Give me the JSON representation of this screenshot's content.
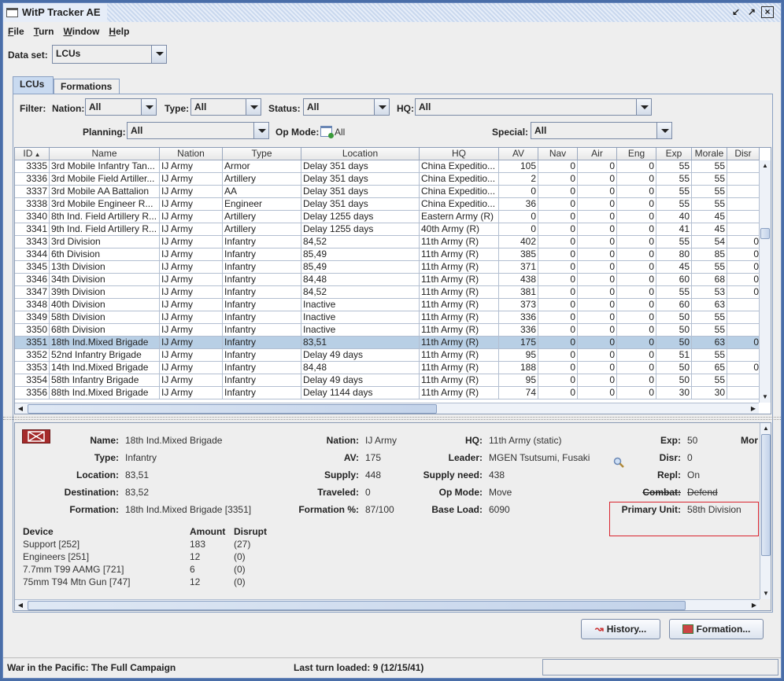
{
  "window": {
    "title": "WitP Tracker AE"
  },
  "menu": [
    {
      "key": "F",
      "rest": "ile"
    },
    {
      "key": "T",
      "rest": "urn"
    },
    {
      "key": "W",
      "rest": "indow"
    },
    {
      "key": "H",
      "rest": "elp"
    }
  ],
  "dataset": {
    "label": "Data set:",
    "value": "LCUs"
  },
  "tabs": [
    {
      "label": "LCUs",
      "active": true
    },
    {
      "label": "Formations",
      "active": false
    }
  ],
  "filters": {
    "filter_label": "Filter:",
    "nation_label": "Nation:",
    "nation": "All",
    "type_label": "Type:",
    "type": "All",
    "status_label": "Status:",
    "status": "All",
    "hq_label": "HQ:",
    "hq": "All",
    "planning_label": "Planning:",
    "planning": "All",
    "opmode_label": "Op Mode:",
    "opmode": "All",
    "special_label": "Special:",
    "special": "All"
  },
  "table": {
    "columns": [
      "ID",
      "Name",
      "Nation",
      "Type",
      "Location",
      "HQ",
      "AV",
      "Nav",
      "Air",
      "Eng",
      "Exp",
      "Morale",
      "Disr"
    ],
    "sort_column": "ID",
    "sort_dir": "ascending",
    "selected_id": "3351",
    "rows": [
      [
        "3335",
        "3rd Mobile Infantry Tan...",
        "IJ Army",
        "Armor",
        "Delay 351 days",
        "China Expeditio...",
        "105",
        "0",
        "0",
        "0",
        "55",
        "55",
        ""
      ],
      [
        "3336",
        "3rd Mobile Field Artiller...",
        "IJ Army",
        "Artillery",
        "Delay 351 days",
        "China Expeditio...",
        "2",
        "0",
        "0",
        "0",
        "55",
        "55",
        ""
      ],
      [
        "3337",
        "3rd Mobile AA Battalion",
        "IJ Army",
        "AA",
        "Delay 351 days",
        "China Expeditio...",
        "0",
        "0",
        "0",
        "0",
        "55",
        "55",
        ""
      ],
      [
        "3338",
        "3rd Mobile Engineer R...",
        "IJ Army",
        "Engineer",
        "Delay 351 days",
        "China Expeditio...",
        "36",
        "0",
        "0",
        "0",
        "55",
        "55",
        ""
      ],
      [
        "3340",
        "8th Ind. Field Artillery R...",
        "IJ Army",
        "Artillery",
        "Delay 1255 days",
        "Eastern Army (R)",
        "0",
        "0",
        "0",
        "0",
        "40",
        "45",
        ""
      ],
      [
        "3341",
        "9th Ind. Field Artillery R...",
        "IJ Army",
        "Artillery",
        "Delay 1255 days",
        "40th Army (R)",
        "0",
        "0",
        "0",
        "0",
        "41",
        "45",
        ""
      ],
      [
        "3343",
        "3rd Division",
        "IJ Army",
        "Infantry",
        "84,52",
        "11th Army (R)",
        "402",
        "0",
        "0",
        "0",
        "55",
        "54",
        "0"
      ],
      [
        "3344",
        "6th Division",
        "IJ Army",
        "Infantry",
        "85,49",
        "11th Army (R)",
        "385",
        "0",
        "0",
        "0",
        "80",
        "85",
        "0"
      ],
      [
        "3345",
        "13th Division",
        "IJ Army",
        "Infantry",
        "85,49",
        "11th Army (R)",
        "371",
        "0",
        "0",
        "0",
        "45",
        "55",
        "0"
      ],
      [
        "3346",
        "34th Division",
        "IJ Army",
        "Infantry",
        "84,48",
        "11th Army (R)",
        "438",
        "0",
        "0",
        "0",
        "60",
        "68",
        "0"
      ],
      [
        "3347",
        "39th Division",
        "IJ Army",
        "Infantry",
        "84,52",
        "11th Army (R)",
        "381",
        "0",
        "0",
        "0",
        "55",
        "53",
        "0"
      ],
      [
        "3348",
        "40th Division",
        "IJ Army",
        "Infantry",
        "Inactive",
        "11th Army (R)",
        "373",
        "0",
        "0",
        "0",
        "60",
        "63",
        ""
      ],
      [
        "3349",
        "58th Division",
        "IJ Army",
        "Infantry",
        "Inactive",
        "11th Army (R)",
        "336",
        "0",
        "0",
        "0",
        "50",
        "55",
        ""
      ],
      [
        "3350",
        "68th Division",
        "IJ Army",
        "Infantry",
        "Inactive",
        "11th Army (R)",
        "336",
        "0",
        "0",
        "0",
        "50",
        "55",
        ""
      ],
      [
        "3351",
        "18th Ind.Mixed Brigade",
        "IJ Army",
        "Infantry",
        "83,51",
        "11th Army (R)",
        "175",
        "0",
        "0",
        "0",
        "50",
        "63",
        "0"
      ],
      [
        "3352",
        "52nd Infantry Brigade",
        "IJ Army",
        "Infantry",
        "Delay 49 days",
        "11th Army (R)",
        "95",
        "0",
        "0",
        "0",
        "51",
        "55",
        ""
      ],
      [
        "3353",
        "14th Ind.Mixed Brigade",
        "IJ Army",
        "Infantry",
        "84,48",
        "11th Army (R)",
        "188",
        "0",
        "0",
        "0",
        "50",
        "65",
        "0"
      ],
      [
        "3354",
        "58th Infantry Brigade",
        "IJ Army",
        "Infantry",
        "Delay 49 days",
        "11th Army (R)",
        "95",
        "0",
        "0",
        "0",
        "50",
        "55",
        ""
      ],
      [
        "3356",
        "88th Ind.Mixed Brigade",
        "IJ Army",
        "Infantry",
        "Delay 1144 days",
        "11th Army (R)",
        "74",
        "0",
        "0",
        "0",
        "30",
        "30",
        ""
      ]
    ]
  },
  "detail": {
    "fields": [
      {
        "label": "Name:",
        "value": "18th Ind.Mixed Brigade"
      },
      {
        "label": "Type:",
        "value": "Infantry"
      },
      {
        "label": "Location:",
        "value": "83,51"
      },
      {
        "label": "Destination:",
        "value": "83,52"
      },
      {
        "label": "Formation:",
        "value": "18th Ind.Mixed Brigade [3351]"
      },
      {
        "label": "Nation:",
        "value": "IJ Army"
      },
      {
        "label": "AV:",
        "value": "175"
      },
      {
        "label": "Supply:",
        "value": "448"
      },
      {
        "label": "Traveled:",
        "value": "0"
      },
      {
        "label": "Formation %:",
        "value": "87/100"
      },
      {
        "label": "HQ:",
        "value": "11th Army (static)"
      },
      {
        "label": "Leader:",
        "value": "MGEN Tsutsumi, Fusaki"
      },
      {
        "label": "Supply need:",
        "value": "438"
      },
      {
        "label": "Op Mode:",
        "value": "Move"
      },
      {
        "label": "Base Load:",
        "value": "6090"
      },
      {
        "label": "Exp:",
        "value": "50"
      },
      {
        "label": "Disr:",
        "value": "0"
      },
      {
        "label": "Repl:",
        "value": "On"
      },
      {
        "label": "Combat:",
        "value": "Defend"
      },
      {
        "label": "Primary Unit:",
        "value": "58th Division"
      }
    ],
    "morale_label_partial": "Mor",
    "devices_header": [
      "Device",
      "Amount",
      "Disrupt"
    ],
    "devices": [
      [
        "Support [252]",
        "183",
        "(27)"
      ],
      [
        "Engineers [251]",
        "12",
        "(0)"
      ],
      [
        "7.7mm T99 AAMG [721]",
        "6",
        "(0)"
      ],
      [
        "75mm T94 Mtn Gun [747]",
        "12",
        "(0)"
      ]
    ],
    "highlight_color": "#d9232e"
  },
  "buttons": {
    "history": "History...",
    "formation": "Formation..."
  },
  "statusbar": {
    "left": "War in the Pacific: The Full Campaign",
    "center": "Last turn loaded: 9 (12/15/41)"
  },
  "colors": {
    "selection": "#b8cfe5",
    "unit_icon": "#a52a2a"
  }
}
